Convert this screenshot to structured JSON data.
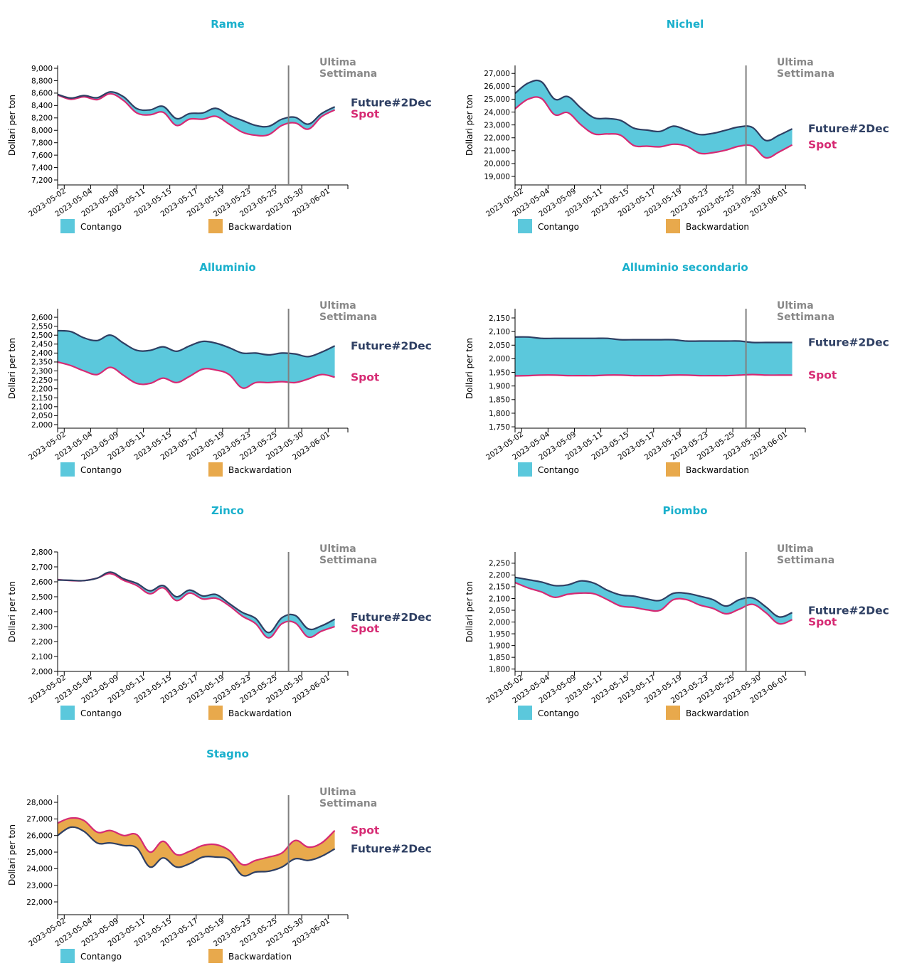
{
  "colors": {
    "title": "#1ab0cc",
    "future": "#2e3f63",
    "spot": "#d62a73",
    "contango": "#5bc8dc",
    "backwardation": "#e8a94c",
    "week_line": "#808080",
    "week_label": "#888888"
  },
  "common": {
    "ylabel": "Dollari per ton",
    "week_label_line1": "Ultima",
    "week_label_line2": "Settimana",
    "week_marker_date": "2023-05-26",
    "future_label": "Future#2Dec",
    "spot_label": "Spot",
    "legend": [
      {
        "label": "Contango",
        "color_key": "contango"
      },
      {
        "label": "Backwardation",
        "color_key": "backwardation"
      }
    ],
    "x_tick_labels": [
      "2023-05-02",
      "2023-05-04",
      "2023-05-09",
      "2023-05-11",
      "2023-05-15",
      "2023-05-17",
      "2023-05-19",
      "2023-05-23",
      "2023-05-25",
      "2023-05-30",
      "2023-06-01"
    ],
    "dates": [
      "2023-05-02",
      "2023-05-03",
      "2023-05-04",
      "2023-05-05",
      "2023-05-09",
      "2023-05-10",
      "2023-05-11",
      "2023-05-12",
      "2023-05-15",
      "2023-05-16",
      "2023-05-17",
      "2023-05-18",
      "2023-05-19",
      "2023-05-22",
      "2023-05-23",
      "2023-05-24",
      "2023-05-25",
      "2023-05-26",
      "2023-05-30",
      "2023-05-31",
      "2023-06-01",
      "2023-06-02"
    ]
  },
  "chart_data": [
    {
      "type": "area",
      "title": "Rame",
      "xlabel": "",
      "ylabel": "Dollari per ton",
      "ylim": [
        7120,
        9046
      ],
      "yticks": [
        7200,
        7400,
        7600,
        7800,
        8000,
        8200,
        8400,
        8600,
        8800,
        9000
      ],
      "grid": false,
      "series": [
        {
          "name": "Future#2Dec",
          "values": [
            8580,
            8520,
            8560,
            8525,
            8620,
            8540,
            8350,
            8330,
            8385,
            8190,
            8270,
            8280,
            8355,
            8240,
            8160,
            8080,
            8065,
            8180,
            8210,
            8100,
            8270,
            8380
          ]
        },
        {
          "name": "Spot",
          "values": [
            8570,
            8500,
            8540,
            8495,
            8590,
            8480,
            8280,
            8250,
            8290,
            8080,
            8180,
            8180,
            8225,
            8100,
            7970,
            7920,
            7930,
            8080,
            8120,
            8020,
            8220,
            8330
          ]
        }
      ]
    },
    {
      "type": "area",
      "title": "Nichel",
      "xlabel": "",
      "ylabel": "Dollari per ton",
      "ylim": [
        18340,
        27620
      ],
      "yticks": [
        19000,
        20000,
        21000,
        22000,
        23000,
        24000,
        25000,
        26000,
        27000
      ],
      "grid": false,
      "series": [
        {
          "name": "Future#2Dec",
          "values": [
            25450,
            26250,
            26350,
            25000,
            25200,
            24300,
            23550,
            23500,
            23350,
            22750,
            22600,
            22500,
            22900,
            22600,
            22250,
            22350,
            22600,
            22850,
            22800,
            21800,
            22200,
            22700
          ]
        },
        {
          "name": "Spot",
          "values": [
            24250,
            25000,
            25050,
            23800,
            23950,
            23000,
            22300,
            22300,
            22200,
            21400,
            21350,
            21300,
            21500,
            21350,
            20800,
            20850,
            21050,
            21350,
            21350,
            20450,
            20900,
            21450
          ]
        }
      ]
    },
    {
      "type": "area",
      "title": "Alluminio",
      "xlabel": "",
      "ylabel": "Dollari per ton",
      "ylim": [
        1980,
        2648
      ],
      "yticks": [
        2000,
        2050,
        2100,
        2150,
        2200,
        2250,
        2300,
        2350,
        2400,
        2450,
        2500,
        2550,
        2600
      ],
      "grid": false,
      "series": [
        {
          "name": "Future#2Dec",
          "values": [
            2525,
            2520,
            2485,
            2470,
            2500,
            2455,
            2415,
            2415,
            2435,
            2410,
            2440,
            2465,
            2455,
            2430,
            2400,
            2400,
            2390,
            2400,
            2395,
            2380,
            2405,
            2440
          ]
        },
        {
          "name": "Spot",
          "values": [
            2350,
            2330,
            2300,
            2280,
            2320,
            2275,
            2230,
            2230,
            2260,
            2235,
            2270,
            2310,
            2305,
            2280,
            2205,
            2235,
            2235,
            2240,
            2235,
            2255,
            2280,
            2265
          ]
        }
      ]
    },
    {
      "type": "area",
      "title": "Alluminio secondario",
      "xlabel": "",
      "ylabel": "Dollari per ton",
      "ylim": [
        1745,
        2184
      ],
      "yticks": [
        1750,
        1800,
        1850,
        1900,
        1950,
        2000,
        2050,
        2100,
        2150
      ],
      "grid": false,
      "series": [
        {
          "name": "Future#2Dec",
          "values": [
            2080,
            2080,
            2075,
            2075,
            2075,
            2075,
            2075,
            2075,
            2070,
            2070,
            2070,
            2070,
            2070,
            2065,
            2065,
            2065,
            2065,
            2065,
            2060,
            2060,
            2060,
            2060
          ]
        },
        {
          "name": "Spot",
          "values": [
            1937,
            1938,
            1940,
            1940,
            1938,
            1938,
            1938,
            1940,
            1940,
            1938,
            1938,
            1938,
            1940,
            1940,
            1938,
            1938,
            1938,
            1940,
            1942,
            1940,
            1940,
            1940
          ]
        }
      ]
    },
    {
      "type": "area",
      "title": "Zinco",
      "xlabel": "",
      "ylabel": "Dollari per ton",
      "ylim": [
        2000,
        2800
      ],
      "yticks": [
        2000,
        2100,
        2200,
        2300,
        2400,
        2500,
        2600,
        2700,
        2800
      ],
      "grid": false,
      "series": [
        {
          "name": "Future#2Dec",
          "values": [
            2612,
            2610,
            2608,
            2625,
            2665,
            2620,
            2590,
            2540,
            2575,
            2500,
            2545,
            2505,
            2515,
            2455,
            2395,
            2355,
            2260,
            2360,
            2375,
            2285,
            2305,
            2350
          ]
        },
        {
          "name": "Spot",
          "values": [
            2615,
            2608,
            2608,
            2625,
            2655,
            2610,
            2575,
            2520,
            2560,
            2475,
            2525,
            2485,
            2490,
            2440,
            2370,
            2320,
            2225,
            2320,
            2325,
            2230,
            2270,
            2300
          ]
        }
      ]
    },
    {
      "type": "area",
      "title": "Piombo",
      "xlabel": "",
      "ylabel": "Dollari per ton",
      "ylim": [
        1790,
        2298
      ],
      "yticks": [
        1800,
        1850,
        1900,
        1950,
        2000,
        2050,
        2100,
        2150,
        2200,
        2250
      ],
      "grid": false,
      "series": [
        {
          "name": "Future#2Dec",
          "values": [
            2190,
            2180,
            2170,
            2155,
            2158,
            2175,
            2165,
            2135,
            2115,
            2110,
            2098,
            2092,
            2122,
            2122,
            2110,
            2095,
            2068,
            2095,
            2102,
            2065,
            2022,
            2040
          ]
        },
        {
          "name": "Spot",
          "values": [
            2168,
            2145,
            2128,
            2105,
            2118,
            2123,
            2120,
            2095,
            2068,
            2062,
            2052,
            2050,
            2095,
            2095,
            2072,
            2058,
            2035,
            2055,
            2075,
            2040,
            1993,
            2010
          ]
        }
      ]
    },
    {
      "type": "area",
      "title": "Stagno",
      "xlabel": "",
      "ylabel": "Dollari per ton",
      "ylim": [
        21230,
        28430
      ],
      "yticks": [
        22000,
        23000,
        24000,
        25000,
        26000,
        27000,
        28000
      ],
      "grid": false,
      "series": [
        {
          "name": "Future#2Dec",
          "values": [
            26000,
            26500,
            26250,
            25550,
            25550,
            25400,
            25250,
            24100,
            24650,
            24100,
            24300,
            24700,
            24700,
            24550,
            23600,
            23800,
            23850,
            24100,
            24600,
            24500,
            24750,
            25200
          ]
        },
        {
          "name": "Spot",
          "values": [
            26750,
            27050,
            26900,
            26200,
            26300,
            26000,
            26050,
            25000,
            25650,
            24850,
            25050,
            25400,
            25450,
            25100,
            24250,
            24500,
            24700,
            24950,
            25700,
            25300,
            25550,
            26300
          ]
        }
      ]
    }
  ]
}
